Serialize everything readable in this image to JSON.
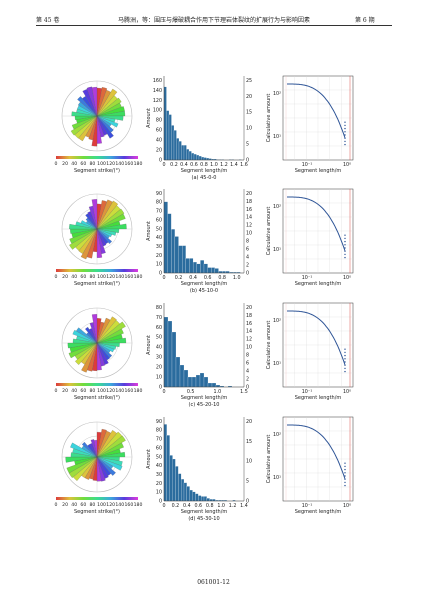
{
  "header": {
    "left": "第 45 卷",
    "center": "马腾洲，等：围压与爆破耦合作用下节理岩体裂纹的扩展行为与影响因素",
    "right": "第 6 期"
  },
  "footer": {
    "page_number": "061001-12"
  },
  "colors": {
    "bar": "#2b6c9e",
    "curve": "#2f5597",
    "cutoff": "#d9534f",
    "grid": "#d8d8d8"
  },
  "panels": [
    {
      "caption": "(a) 45-0-0",
      "rose": {
        "xlabel": "Segment strike/(°)",
        "ticks": [
          "0",
          "20",
          "40",
          "60",
          "80",
          "100",
          "120",
          "140",
          "160",
          "180"
        ]
      },
      "hist": {
        "ylabel": "Amount",
        "xlabel": "Segment length/m",
        "y_ticks": [
          "0",
          "20",
          "40",
          "60",
          "80",
          "100",
          "120",
          "140",
          "160"
        ],
        "x_ticks": [
          "0",
          "0.2",
          "0.4",
          "0.6",
          "0.8",
          "1.0",
          "1.2",
          "1.4",
          "1.6"
        ],
        "y2_ticks": [
          "0",
          "5",
          "10",
          "15",
          "20",
          "25"
        ],
        "chart_data": {
          "type": "bar",
          "x_range": [
            0,
            1.6
          ],
          "ylim": [
            0,
            170
          ],
          "bin_width": 0.05,
          "values": [
            148,
            100,
            92,
            70,
            60,
            44,
            38,
            30,
            30,
            22,
            18,
            14,
            12,
            10,
            8,
            6,
            5,
            4,
            3,
            2,
            2,
            1,
            1,
            1,
            0,
            0,
            1,
            1,
            0,
            0,
            1,
            0
          ]
        }
      },
      "cdf": {
        "ylabel": "Calculative amount",
        "xlabel": "Segment length/m",
        "y_ticks": [
          "10¹",
          "10²"
        ],
        "x_ticks": [
          "10⁻¹",
          "10⁰"
        ]
      }
    },
    {
      "caption": "(b) 45-10-0",
      "rose": {
        "xlabel": "Segment strike/(°)",
        "ticks": [
          "0",
          "20",
          "40",
          "60",
          "80",
          "100",
          "120",
          "140",
          "160",
          "180"
        ]
      },
      "hist": {
        "ylabel": "Amount",
        "xlabel": "Segment length/m",
        "y_ticks": [
          "0",
          "10",
          "20",
          "30",
          "40",
          "50",
          "60",
          "70",
          "80",
          "90"
        ],
        "x_ticks": [
          "0",
          "0.2",
          "0.4",
          "0.6",
          "0.8",
          "1.0"
        ],
        "y2_ticks": [
          "0",
          "2",
          "4",
          "6",
          "8",
          "10",
          "12",
          "14",
          "16",
          "18",
          "20"
        ],
        "chart_data": {
          "type": "bar",
          "x_range": [
            0,
            1.1
          ],
          "ylim": [
            0,
            92
          ],
          "bin_width": 0.05,
          "values": [
            78,
            65,
            48,
            40,
            30,
            30,
            16,
            16,
            12,
            10,
            14,
            10,
            6,
            6,
            5,
            2,
            2,
            2,
            1,
            1,
            1,
            0
          ]
        }
      },
      "cdf": {
        "ylabel": "Calculative amount",
        "xlabel": "Segment length/m",
        "y_ticks": [
          "10¹",
          "10²"
        ],
        "x_ticks": [
          "10⁻¹",
          "10⁰"
        ]
      }
    },
    {
      "caption": "(c) 45-20-10",
      "rose": {
        "xlabel": "Segment strike/(°)",
        "ticks": [
          "0",
          "20",
          "40",
          "60",
          "80",
          "100",
          "120",
          "140",
          "160",
          "180"
        ]
      },
      "hist": {
        "ylabel": "Amount",
        "xlabel": "Segment length/m",
        "y_ticks": [
          "0",
          "10",
          "20",
          "30",
          "40",
          "50",
          "60",
          "70",
          "80"
        ],
        "x_ticks": [
          "0",
          "0.5",
          "1.0",
          "1.5"
        ],
        "y2_ticks": [
          "0",
          "2",
          "4",
          "6",
          "8",
          "10",
          "12",
          "14",
          "16",
          "18",
          "20"
        ],
        "chart_data": {
          "type": "bar",
          "x_range": [
            0,
            1.5
          ],
          "ylim": [
            0,
            84
          ],
          "bin_width": 0.075,
          "values": [
            70,
            66,
            55,
            30,
            22,
            17,
            10,
            10,
            12,
            14,
            10,
            4,
            4,
            2,
            1,
            0,
            1,
            0,
            0,
            0
          ]
        }
      },
      "cdf": {
        "ylabel": "Calculative amount",
        "xlabel": "Segment length/m",
        "y_ticks": [
          "10¹",
          "10²"
        ],
        "x_ticks": [
          "10⁻¹",
          "10⁰"
        ]
      }
    },
    {
      "caption": "(d) 45-30-10",
      "rose": {
        "xlabel": "Segment strike/(°)",
        "ticks": [
          "0",
          "20",
          "40",
          "60",
          "80",
          "100",
          "120",
          "140",
          "160",
          "180"
        ]
      },
      "hist": {
        "ylabel": "Amount",
        "xlabel": "Segment length/m",
        "y_ticks": [
          "0",
          "10",
          "20",
          "30",
          "40",
          "50",
          "60",
          "70",
          "80",
          "90"
        ],
        "x_ticks": [
          "0",
          "0.2",
          "0.4",
          "0.6",
          "0.8",
          "1.0",
          "1.2",
          "1.4"
        ],
        "y2_ticks": [
          "0",
          "5",
          "10",
          "15",
          "20"
        ],
        "chart_data": {
          "type": "bar",
          "x_range": [
            0,
            1.4
          ],
          "ylim": [
            0,
            92
          ],
          "bin_width": 0.05,
          "values": [
            84,
            72,
            50,
            46,
            38,
            30,
            24,
            20,
            16,
            12,
            10,
            8,
            6,
            5,
            5,
            3,
            2,
            2,
            1,
            1,
            1,
            1,
            0,
            0,
            1,
            0,
            0,
            0
          ]
        }
      },
      "cdf": {
        "ylabel": "Calculative amount",
        "xlabel": "Segment length/m",
        "y_ticks": [
          "10¹",
          "10²"
        ],
        "x_ticks": [
          "10⁻¹",
          "10⁰"
        ]
      }
    }
  ]
}
